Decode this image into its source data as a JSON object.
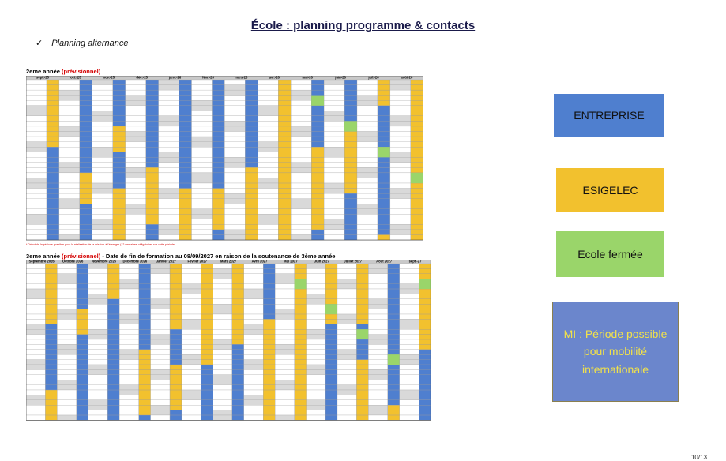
{
  "page": {
    "title": "École : planning programme & contacts",
    "subtitle": "Planning alternance",
    "check_glyph": "✓",
    "page_number": "10/13"
  },
  "section1": {
    "title_prefix": "2eme année",
    "title_highlight": "(prévisionnel)",
    "months": [
      "sept.-25",
      "oct.-25",
      "nov.-25",
      "déc.-25",
      "janv.-26",
      "févr.-26",
      "mars-26",
      "avr.-26",
      "mai-26",
      "juin-26",
      "juil.-26",
      "août-26"
    ],
    "note": "* Début de la période possible pour la réalisation de la mission à l'étranger (12 semaines obligatoires sur cette période)"
  },
  "section2": {
    "title_prefix": "3eme année",
    "title_highlight": "(prévisionnel)",
    "title_suffix": " - Date de fin de formation au 08/09/2027 en raison de la soutenance de 3ème année",
    "months": [
      "Septembre 2026",
      "Octobre 2026",
      "Novembre 2026",
      "Décembre 2026",
      "Janvier 2027",
      "Février 2027",
      "Mars 2027",
      "Avril 2027",
      "Mai 2027",
      "Juin 2027",
      "Juillet 2027",
      "Août 2027",
      "sept.-27"
    ]
  },
  "legend": {
    "entreprise": "ENTREPRISE",
    "esigelec": "ESIGELEC",
    "ecole_fermee": "Ecole fermée",
    "mi": "MI : Période possible pour mobilité internationale"
  },
  "colors": {
    "entreprise": "#4f7fcf",
    "esigelec": "#f2c12e",
    "ecole_fermee": "#9ad56a",
    "mi": "#6b86cc",
    "mi_text": "#f2e24a",
    "weekend": "#d9d9d9",
    "header": "#c9c9c9"
  }
}
